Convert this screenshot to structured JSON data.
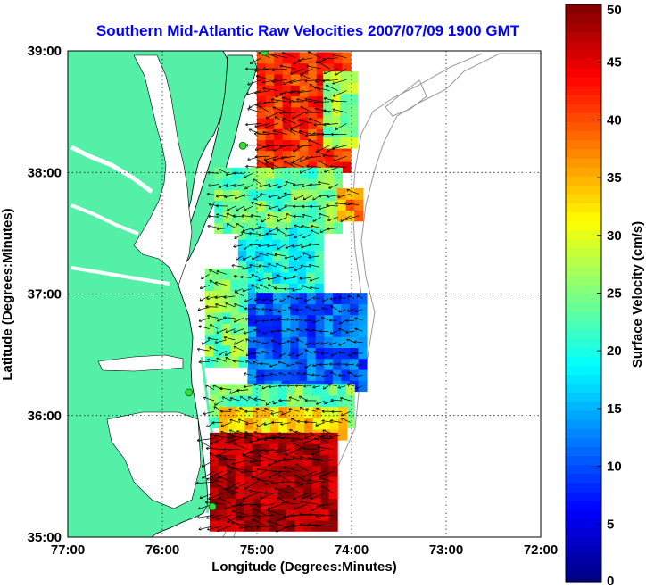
{
  "title": "Southern Mid-Atlantic Raw Velocities 2007/07/09 1900 GMT",
  "xlabel": "Longitude (Degrees:Minutes)",
  "ylabel": "Latitude (Degrees:Minutes)",
  "colorbar_label": "Surface Velocity (cm/s)",
  "colors": {
    "title": "#0000ff",
    "land": "#55f0a8",
    "grid": "#000000",
    "stations": "#33dd33"
  },
  "map": {
    "lon_range": [
      -77,
      -72
    ],
    "lat_range": [
      35,
      39
    ],
    "lon_ticks": [
      {
        "value": -77,
        "label": "77:00"
      },
      {
        "value": -76,
        "label": "76:00"
      },
      {
        "value": -75,
        "label": "75:00"
      },
      {
        "value": -74,
        "label": "74:00"
      },
      {
        "value": -73,
        "label": "73:00"
      },
      {
        "value": -72,
        "label": "72:00"
      }
    ],
    "lat_ticks": [
      {
        "value": 39,
        "label": "39:00"
      },
      {
        "value": 38,
        "label": "38:00"
      },
      {
        "value": 37,
        "label": "37:00"
      },
      {
        "value": 36,
        "label": "36:00"
      },
      {
        "value": 35,
        "label": "35:00"
      }
    ],
    "grid": true
  },
  "colorbar": {
    "min": 0,
    "max": 50,
    "ticks": [
      {
        "value": 0,
        "label": "0"
      },
      {
        "value": 5,
        "label": "5"
      },
      {
        "value": 10,
        "label": "10"
      },
      {
        "value": 15,
        "label": "15"
      },
      {
        "value": 20,
        "label": "20"
      },
      {
        "value": 25,
        "label": "25"
      },
      {
        "value": 30,
        "label": "30"
      },
      {
        "value": 35,
        "label": "35"
      },
      {
        "value": 40,
        "label": "40"
      },
      {
        "value": 45,
        "label": "45"
      },
      {
        "value": 50,
        "label": "50"
      }
    ],
    "colormap": "jet"
  },
  "stations": [
    {
      "lon": -74.92,
      "lat": 38.99
    },
    {
      "lon": -75.15,
      "lat": 38.22
    },
    {
      "lon": -75.72,
      "lat": 36.19
    },
    {
      "lon": -75.47,
      "lat": 35.25
    }
  ],
  "velocity_field": {
    "cell_deg": 0.09,
    "regions": [
      {
        "name": "north",
        "lon": [
          -75.0,
          -74.05
        ],
        "lat": [
          38.0,
          38.95
        ],
        "speed": 42
      },
      {
        "name": "north-east",
        "lon": [
          -74.3,
          -74.0
        ],
        "lat": [
          38.2,
          38.75
        ],
        "speed": 26
      },
      {
        "name": "mid-north",
        "lon": [
          -75.45,
          -74.1
        ],
        "lat": [
          37.5,
          38.0
        ],
        "speed": 24
      },
      {
        "name": "hotspot",
        "lon": [
          -74.15,
          -73.9
        ],
        "lat": [
          37.6,
          37.85
        ],
        "speed": 36
      },
      {
        "name": "middle",
        "lon": [
          -75.2,
          -74.3
        ],
        "lat": [
          37.0,
          37.5
        ],
        "speed": 20
      },
      {
        "name": "center",
        "lon": [
          -75.1,
          -73.85
        ],
        "lat": [
          36.2,
          37.0
        ],
        "speed": 11
      },
      {
        "name": "west-mid",
        "lon": [
          -75.55,
          -75.1
        ],
        "lat": [
          36.4,
          37.2
        ],
        "speed": 25
      },
      {
        "name": "lower",
        "lon": [
          -75.5,
          -74.0
        ],
        "lat": [
          35.9,
          36.2
        ],
        "speed": 24
      },
      {
        "name": "southern-orange",
        "lon": [
          -75.4,
          -74.1
        ],
        "lat": [
          35.8,
          36.0
        ],
        "speed": 33
      },
      {
        "name": "south",
        "lon": [
          -75.5,
          -74.15
        ],
        "lat": [
          35.05,
          35.85
        ],
        "speed": 48
      }
    ]
  }
}
